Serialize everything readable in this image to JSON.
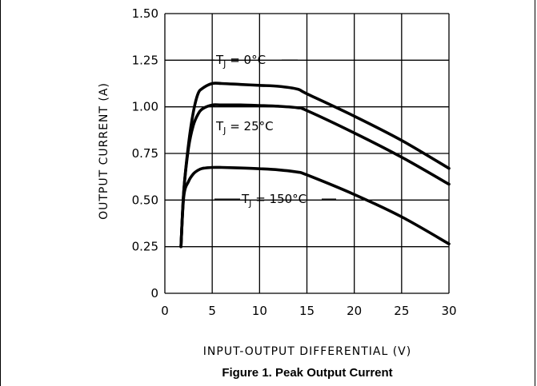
{
  "chart_data": {
    "type": "line",
    "title": "",
    "xlabel": "INPUT-OUTPUT DIFFERENTIAL (V)",
    "ylabel": "OUTPUT CURRENT (A)",
    "xlim": [
      0,
      30
    ],
    "ylim": [
      0,
      1.5
    ],
    "x_ticks": [
      "0",
      "5",
      "10",
      "15",
      "20",
      "25",
      "30"
    ],
    "y_ticks": [
      "0",
      "0.25",
      "0.50",
      "0.75",
      "1.00",
      "1.25",
      "1.50"
    ],
    "grid": true,
    "annotations": [
      {
        "main": "T",
        "sub": "J",
        "rest": " = 0°C",
        "series": "0"
      },
      {
        "main": "T",
        "sub": "J",
        "rest": " = 25°C",
        "series": "25"
      },
      {
        "main": "T",
        "sub": "J",
        "rest": " = 150°C",
        "series": "150"
      }
    ],
    "series": [
      {
        "id": "0",
        "x": [
          1.7,
          2.0,
          2.5,
          3.0,
          3.5,
          4.0,
          5.0,
          6.0,
          8.0,
          10.0,
          12.0,
          14.0,
          15.0,
          20.0,
          25.0,
          30.0
        ],
        "y": [
          0.25,
          0.55,
          0.8,
          0.97,
          1.07,
          1.1,
          1.125,
          1.125,
          1.12,
          1.115,
          1.11,
          1.095,
          1.07,
          0.95,
          0.82,
          0.67
        ]
      },
      {
        "id": "25",
        "x": [
          1.7,
          2.0,
          2.5,
          3.0,
          3.5,
          4.0,
          5.0,
          6.0,
          8.0,
          10.0,
          12.0,
          14.0,
          15.0,
          20.0,
          25.0,
          30.0
        ],
        "y": [
          0.25,
          0.55,
          0.78,
          0.9,
          0.96,
          0.99,
          1.01,
          1.01,
          1.01,
          1.007,
          1.003,
          0.995,
          0.98,
          0.86,
          0.73,
          0.585
        ]
      },
      {
        "id": "150",
        "x": [
          1.7,
          2.0,
          2.5,
          3.0,
          3.5,
          4.0,
          5.0,
          6.0,
          8.0,
          10.0,
          12.0,
          14.0,
          15.0,
          20.0,
          25.0,
          30.0
        ],
        "y": [
          0.25,
          0.52,
          0.6,
          0.64,
          0.66,
          0.67,
          0.675,
          0.675,
          0.672,
          0.668,
          0.662,
          0.65,
          0.635,
          0.53,
          0.41,
          0.265
        ]
      }
    ]
  },
  "caption": "Figure 1. Peak Output Current"
}
